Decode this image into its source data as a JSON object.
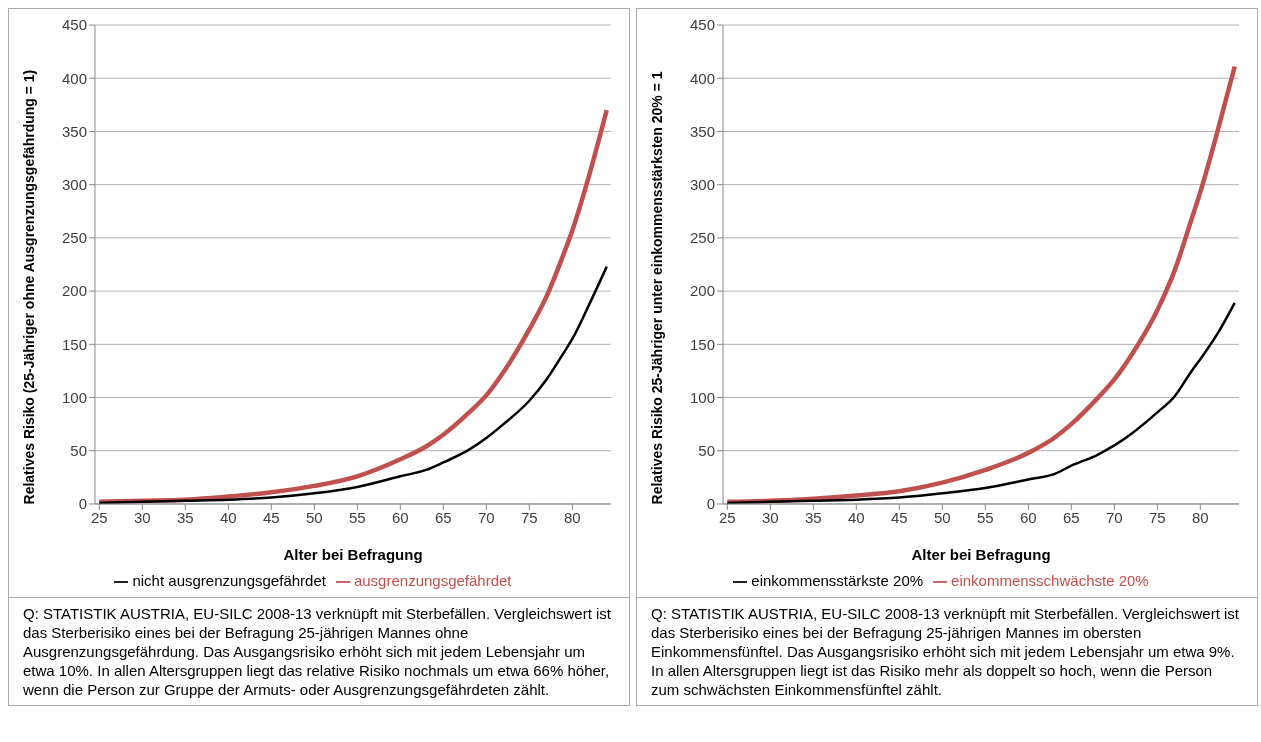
{
  "chart_data": [
    {
      "type": "line",
      "xlabel": "Alter bei Befragung",
      "ylabel": "Relatives Risiko (25-Jähriger ohne Ausgrenzungsgefährdung = 1)",
      "x": [
        25,
        30,
        35,
        40,
        45,
        50,
        55,
        60,
        63,
        65,
        68,
        70,
        72,
        75,
        77,
        79,
        80,
        82,
        84
      ],
      "xlim": [
        24.5,
        84.5
      ],
      "xticks": [
        25,
        30,
        35,
        40,
        45,
        50,
        55,
        60,
        65,
        70,
        75,
        80
      ],
      "ylim": [
        0,
        450
      ],
      "yticks": [
        0,
        50,
        100,
        150,
        200,
        250,
        300,
        350,
        400,
        450
      ],
      "grid": "y",
      "legend": "bottom",
      "marker": "none",
      "line_style": "solid",
      "series": [
        {
          "name": "nicht ausgrenzungsgefährdet",
          "color": "#000000",
          "values": [
            1,
            2,
            3,
            4,
            6,
            10,
            16,
            26,
            32,
            39,
            51,
            62,
            75,
            97,
            117,
            142,
            155,
            188,
            223
          ]
        },
        {
          "name": "ausgrenzungsgefährdet",
          "color": "#c0504d",
          "values": [
            2,
            3,
            4,
            7,
            11,
            17,
            26,
            42,
            54,
            65,
            86,
            102,
            124,
            164,
            195,
            235,
            257,
            310,
            370
          ]
        }
      ],
      "annotations": [
        "Q: STATISTIK AUSTRIA, EU-SILC 2008-13 verknüpft mit Sterbefällen. Vergleichswert ist das Sterberisiko eines bei der Befragung 25-jährigen Mannes ohne Ausgrenzungsgefährdung. Das Ausgangsrisiko erhöht sich mit jedem Lebensjahr um etwa 10%. In allen Altersgruppen liegt das relative Risiko nochmals um etwa 66% höher, wenn die Person zur Gruppe der Armuts- oder Ausgrenzungsgefährdeten zählt."
      ]
    },
    {
      "type": "line",
      "xlabel": "Alter bei Befragung",
      "ylabel": "Relatives Risiko 25-Jähriger unter einkommensstärksten 20% = 1",
      "x": [
        25,
        30,
        35,
        40,
        45,
        50,
        55,
        60,
        63,
        65,
        68,
        70,
        72,
        75,
        77,
        79,
        80,
        82,
        84
      ],
      "xlim": [
        24.5,
        84.5
      ],
      "xticks": [
        25,
        30,
        35,
        40,
        45,
        50,
        55,
        60,
        65,
        70,
        75,
        80
      ],
      "ylim": [
        0,
        450
      ],
      "yticks": [
        0,
        50,
        100,
        150,
        200,
        250,
        300,
        350,
        400,
        450
      ],
      "grid": "y",
      "legend": "bottom",
      "marker": "none",
      "line_style": "solid",
      "series": [
        {
          "name": "einkommensstärkste 20%",
          "color": "#000000",
          "values": [
            1,
            2,
            3,
            4,
            6,
            10,
            15,
            23,
            28,
            36,
            46,
            55,
            66,
            86,
            101,
            125,
            136,
            160,
            189
          ]
        },
        {
          "name": "einkommensschwächste 20%",
          "color": "#c0504d",
          "values": [
            2,
            3,
            5,
            8,
            12,
            20,
            32,
            48,
            62,
            75,
            99,
            117,
            140,
            182,
            219,
            268,
            293,
            350,
            411
          ]
        }
      ],
      "annotations": [
        "Q: STATISTIK AUSTRIA, EU-SILC 2008-13 verknüpft mit Sterbefällen. Vergleichswert ist das Sterberisiko eines bei der Befragung 25-jährigen Mannes im obersten Einkommensfünftel. Das Ausgangsrisiko erhöht sich mit jedem Lebensjahr um etwa 9%. In allen Altersgruppen liegt ist das Risiko mehr als doppelt so hoch, wenn die Person zum schwächsten Einkommensfünftel zählt."
      ]
    }
  ]
}
